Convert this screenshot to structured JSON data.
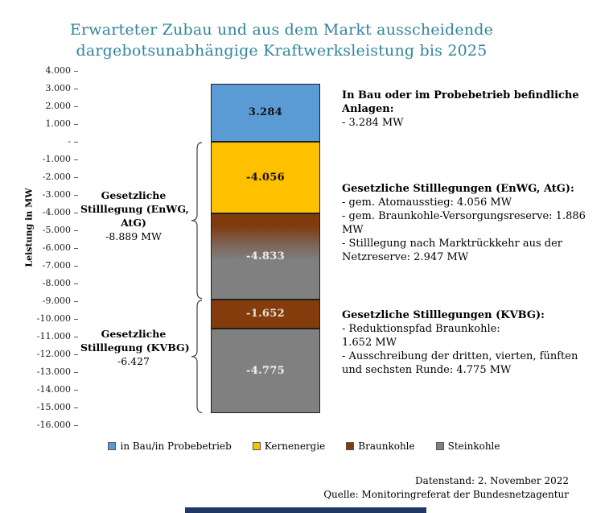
{
  "title": {
    "lines": [
      "Erwarteter Zubau und aus dem Markt ausscheidende",
      "dargebotsunabhängige Kraftwerksleistung bis 2025"
    ],
    "color": "#31859B"
  },
  "y_axis": {
    "label": "Leistung in MW",
    "ticks": [
      "4.000",
      "3.000",
      "2.000",
      "1.000",
      "-",
      "-1.000",
      "-2.000",
      "-3.000",
      "-4.000",
      "-5.000",
      "-6.000",
      "-7.000",
      "-8.000",
      "-9.000",
      "-10.000",
      "-11.000",
      "-12.000",
      "-13.000",
      "-14.000",
      "-15.000",
      "-16.000"
    ]
  },
  "chart_data": {
    "type": "bar",
    "title": "Erwarteter Zubau und aus dem Markt ausscheidende dargebotsunabhängige Kraftwerksleistung bis 2025",
    "xlabel": "",
    "ylabel": "Leistung in MW",
    "ylim": [
      -16000,
      4000
    ],
    "grid": false,
    "legend_position": "bottom",
    "series": [
      {
        "id": "in-bau",
        "name": "in Bau/in Probebetrieb",
        "value": 3284,
        "label": "3.284",
        "color": "#5B9BD5",
        "label_color": "#111111"
      },
      {
        "id": "kernenergie",
        "name": "Kernenergie",
        "value": -4056,
        "label": "-4.056",
        "color": "#FFC000",
        "label_color": "#111111"
      },
      {
        "id": "enwg-braunkohle-steinkohle",
        "name": "Braunkohle/Steinkohle (EnWG, AtG)",
        "value": -4833,
        "label": "-4.833",
        "color_top": "#7F3B0D",
        "color_bottom": "#808080",
        "label_color": "#EDEDED"
      },
      {
        "id": "braunkohle-kvbg",
        "name": "Braunkohle (KVBG)",
        "value": -1652,
        "label": "-1.652",
        "color": "#843C0C",
        "label_color": "#E9E1DB"
      },
      {
        "id": "steinkohle-kvbg",
        "name": "Steinkohle (KVBG)",
        "value": -4775,
        "label": "-4.775",
        "color": "#808080",
        "label_color": "#F2F2F2"
      }
    ]
  },
  "annotations_left": [
    {
      "heading_lines": [
        "Gesetzliche",
        "Stilllegung (EnWG,",
        "AtG)"
      ],
      "value": "-8.889 MW",
      "brace_span_mw": [
        0,
        -8889
      ]
    },
    {
      "heading_lines": [
        "Gesetzliche",
        "Stilllegung (KVBG)"
      ],
      "value": "-6.427",
      "brace_span_mw": [
        -8889,
        -15316
      ]
    }
  ],
  "annotations_right": [
    {
      "heading_lines": [
        "In Bau oder im Probebetrieb befindliche",
        "Anlagen:"
      ],
      "lines": [
        "- 3.284 MW"
      ]
    },
    {
      "heading_lines": [
        "Gesetzliche Stilllegungen (EnWG, AtG):"
      ],
      "lines": [
        "- gem. Atomausstieg: 4.056 MW",
        "- gem. Braunkohle-Versorgungsreserve: 1.886",
        "MW",
        "- Stilllegung nach Marktrückkehr aus der",
        "Netzreserve: 2.947 MW"
      ]
    },
    {
      "heading_lines": [
        "Gesetzliche Stilllegungen (KVBG):"
      ],
      "lines": [
        "- Reduktionspfad Braunkohle:",
        "1.652 MW",
        "- Ausschreibung der dritten, vierten, fünften",
        "und sechsten Runde: 4.775 MW"
      ]
    }
  ],
  "legend": [
    {
      "label": "in Bau/in Probebetrieb",
      "color": "#5B9BD5"
    },
    {
      "label": "Kernenergie",
      "color": "#FFC000"
    },
    {
      "label": "Braunkohle",
      "color": "#843C0C"
    },
    {
      "label": "Steinkohle",
      "color": "#808080"
    }
  ],
  "footer": {
    "lines": [
      "Datenstand: 2. November 2022",
      "Quelle: Monitoringreferat der Bundesnetzagentur"
    ]
  },
  "decor": {
    "bottom_bar_color": "#1F3864",
    "brace_color": "#3f3f3f"
  }
}
